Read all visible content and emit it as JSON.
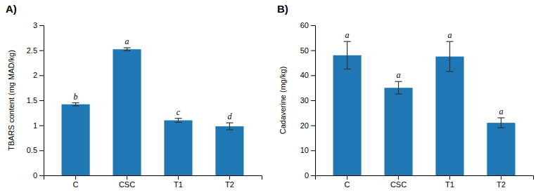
{
  "chart_data": [
    {
      "type": "bar",
      "title": "A)",
      "categories": [
        "C",
        "CSC",
        "T1",
        "T2"
      ],
      "values": [
        1.42,
        2.52,
        1.1,
        0.98
      ],
      "errors": [
        0.03,
        0.03,
        0.04,
        0.07
      ],
      "annotations": [
        "b",
        "a",
        "c",
        "d"
      ],
      "ylabel": "TBARS content (mg MAD/kg)",
      "ylim": [
        0,
        3
      ],
      "yticks": [
        0,
        0.5,
        1,
        1.5,
        2,
        2.5,
        3
      ],
      "grid": false
    },
    {
      "type": "bar",
      "title": "B)",
      "categories": [
        "C",
        "CSC",
        "T1",
        "T2"
      ],
      "values": [
        48.0,
        35.0,
        47.5,
        21.0
      ],
      "errors": [
        5.5,
        2.5,
        6.0,
        2.0
      ],
      "annotations": [
        "a",
        "a",
        "a",
        "a"
      ],
      "ylabel": "Cadaverine (mg/kg)",
      "ylim": [
        0,
        60
      ],
      "yticks": [
        0,
        10,
        20,
        30,
        40,
        50,
        60
      ],
      "grid": false
    }
  ]
}
